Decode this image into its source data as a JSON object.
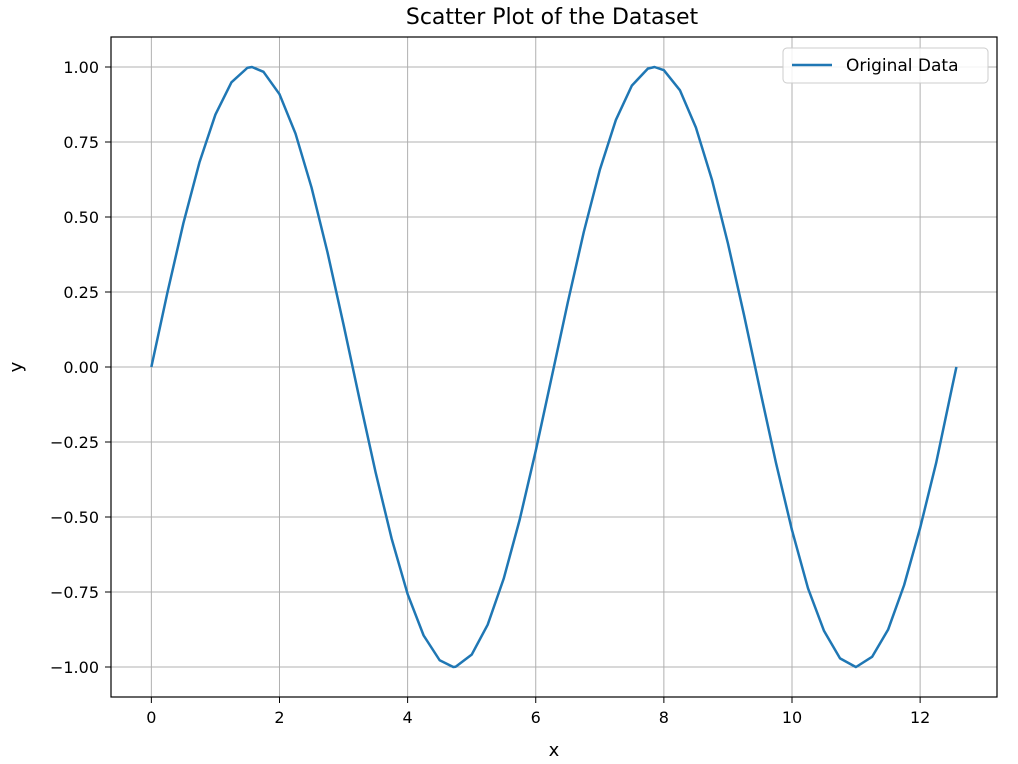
{
  "chart_data": {
    "type": "line",
    "title": "Scatter Plot of the Dataset",
    "xlabel": "x",
    "ylabel": "y",
    "xlim": [
      -0.63,
      13.2
    ],
    "ylim": [
      -1.1,
      1.1
    ],
    "xticks": [
      0,
      2,
      4,
      6,
      8,
      10,
      12
    ],
    "xtick_labels": [
      "0",
      "2",
      "4",
      "6",
      "8",
      "10",
      "12"
    ],
    "yticks": [
      -1.0,
      -0.75,
      -0.5,
      -0.25,
      0.0,
      0.25,
      0.5,
      0.75,
      1.0
    ],
    "ytick_labels": [
      "−1.00",
      "−0.75",
      "−0.50",
      "−0.25",
      "0.00",
      "0.25",
      "0.50",
      "0.75",
      "1.00"
    ],
    "grid": true,
    "legend": {
      "placement": "top-right"
    },
    "colors": {
      "line": "#1f77b4",
      "grid": "#b0b0b0",
      "axes": "#000000"
    },
    "series": [
      {
        "name": "Original Data",
        "x": [
          0.0,
          0.25,
          0.5,
          0.75,
          1.0,
          1.25,
          1.5,
          1.5708,
          1.75,
          2.0,
          2.25,
          2.5,
          2.75,
          3.0,
          3.1416,
          3.25,
          3.5,
          3.75,
          4.0,
          4.25,
          4.5,
          4.7124,
          4.75,
          5.0,
          5.25,
          5.5,
          5.75,
          6.0,
          6.2832,
          6.5,
          6.75,
          7.0,
          7.25,
          7.5,
          7.75,
          7.854,
          8.0,
          8.25,
          8.5,
          8.75,
          9.0,
          9.25,
          9.4248,
          9.5,
          9.75,
          10.0,
          10.25,
          10.5,
          10.75,
          10.9956,
          11.0,
          11.25,
          11.5,
          11.75,
          12.0,
          12.25,
          12.5,
          12.5664
        ],
        "y": [
          0.0,
          0.2474,
          0.4794,
          0.6816,
          0.8415,
          0.949,
          0.9975,
          1.0,
          0.984,
          0.9093,
          0.7781,
          0.5985,
          0.3817,
          0.1411,
          0.0,
          -0.1081,
          -0.3508,
          -0.5716,
          -0.7568,
          -0.895,
          -0.9775,
          -1.0,
          -0.9993,
          -0.9589,
          -0.8589,
          -0.7055,
          -0.5083,
          -0.2794,
          0.0,
          0.2151,
          0.45,
          0.657,
          0.8231,
          0.938,
          0.9946,
          1.0,
          0.9894,
          0.9228,
          0.7985,
          0.6247,
          0.4121,
          0.1743,
          0.0,
          -0.0752,
          -0.3195,
          -0.544,
          -0.7378,
          -0.8797,
          -0.9712,
          -1.0,
          -0.99999,
          -0.9661,
          -0.8755,
          -0.7271,
          -0.5366,
          -0.3199,
          -0.0663,
          0.0
        ]
      }
    ]
  }
}
